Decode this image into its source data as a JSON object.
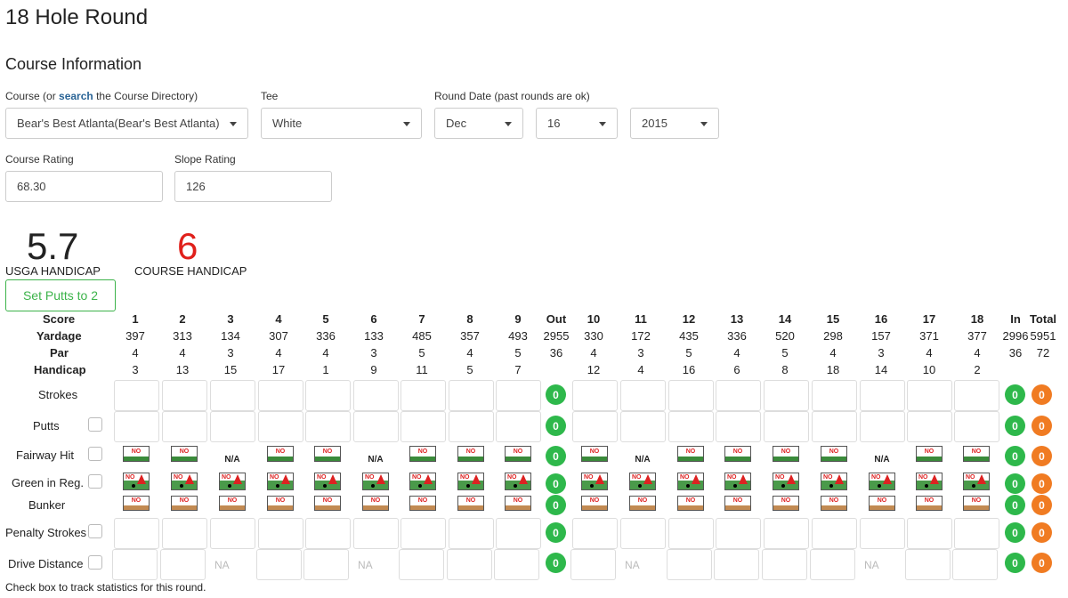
{
  "page": {
    "title": "18 Hole Round",
    "section_title": "Course Information"
  },
  "course": {
    "label_prefix": "Course (or ",
    "label_link": "search",
    "label_suffix": " the Course Directory)",
    "value": "Bear's Best Atlanta(Bear's Best Atlanta)"
  },
  "tee": {
    "label": "Tee",
    "value": "White"
  },
  "round_date": {
    "label": "Round Date (past rounds are ok)",
    "month": "Dec",
    "day": "16",
    "year": "2015"
  },
  "course_rating": {
    "label": "Course Rating",
    "value": "68.30"
  },
  "slope_rating": {
    "label": "Slope Rating",
    "value": "126"
  },
  "usga_handicap": {
    "value": "5.7",
    "label": "USGA HANDICAP",
    "color": "#222222"
  },
  "course_handicap": {
    "value": "6",
    "label": "COURSE HANDICAP",
    "color": "#e0201b"
  },
  "set_putts_button": "Set Putts to 2",
  "scorecard": {
    "score_label": "Score",
    "yardage_label": "Yardage",
    "par_label": "Par",
    "handicap_label": "Handicap",
    "columns": [
      "1",
      "2",
      "3",
      "4",
      "5",
      "6",
      "7",
      "8",
      "9",
      "Out",
      "10",
      "11",
      "12",
      "13",
      "14",
      "15",
      "16",
      "17",
      "18",
      "In",
      "Total"
    ],
    "yardage": [
      "397",
      "313",
      "134",
      "307",
      "336",
      "133",
      "485",
      "357",
      "493",
      "2955",
      "330",
      "172",
      "435",
      "336",
      "520",
      "298",
      "157",
      "371",
      "377",
      "2996",
      "5951"
    ],
    "par": [
      "4",
      "4",
      "3",
      "4",
      "4",
      "3",
      "5",
      "4",
      "5",
      "36",
      "4",
      "3",
      "5",
      "4",
      "5",
      "4",
      "3",
      "4",
      "4",
      "36",
      "72"
    ],
    "handicap": [
      "3",
      "13",
      "15",
      "17",
      "1",
      "9",
      "11",
      "5",
      "7",
      "",
      "12",
      "4",
      "16",
      "6",
      "8",
      "18",
      "14",
      "10",
      "2",
      "",
      ""
    ],
    "rows": {
      "strokes": "Strokes",
      "putts": "Putts",
      "fairway": "Fairway Hit",
      "gir": "Green in Reg.",
      "bunker": "Bunker",
      "penalty": "Penalty Strokes",
      "drive": "Drive Distance"
    },
    "fairway_na": [
      false,
      false,
      true,
      false,
      false,
      true,
      false,
      false,
      false,
      false,
      true,
      false,
      false,
      false,
      false,
      true,
      false,
      false
    ],
    "drive_na": [
      false,
      false,
      true,
      false,
      false,
      true,
      false,
      false,
      false,
      false,
      true,
      false,
      false,
      false,
      false,
      true,
      false,
      false
    ],
    "icon_no_text": "NO",
    "na_text": "N/A",
    "drive_na_text": "NA",
    "total_value": "0",
    "colors": {
      "total_green": "#2eb84b",
      "total_orange": "#f07b22"
    }
  },
  "footnote": "Check box to track statistics for this round."
}
